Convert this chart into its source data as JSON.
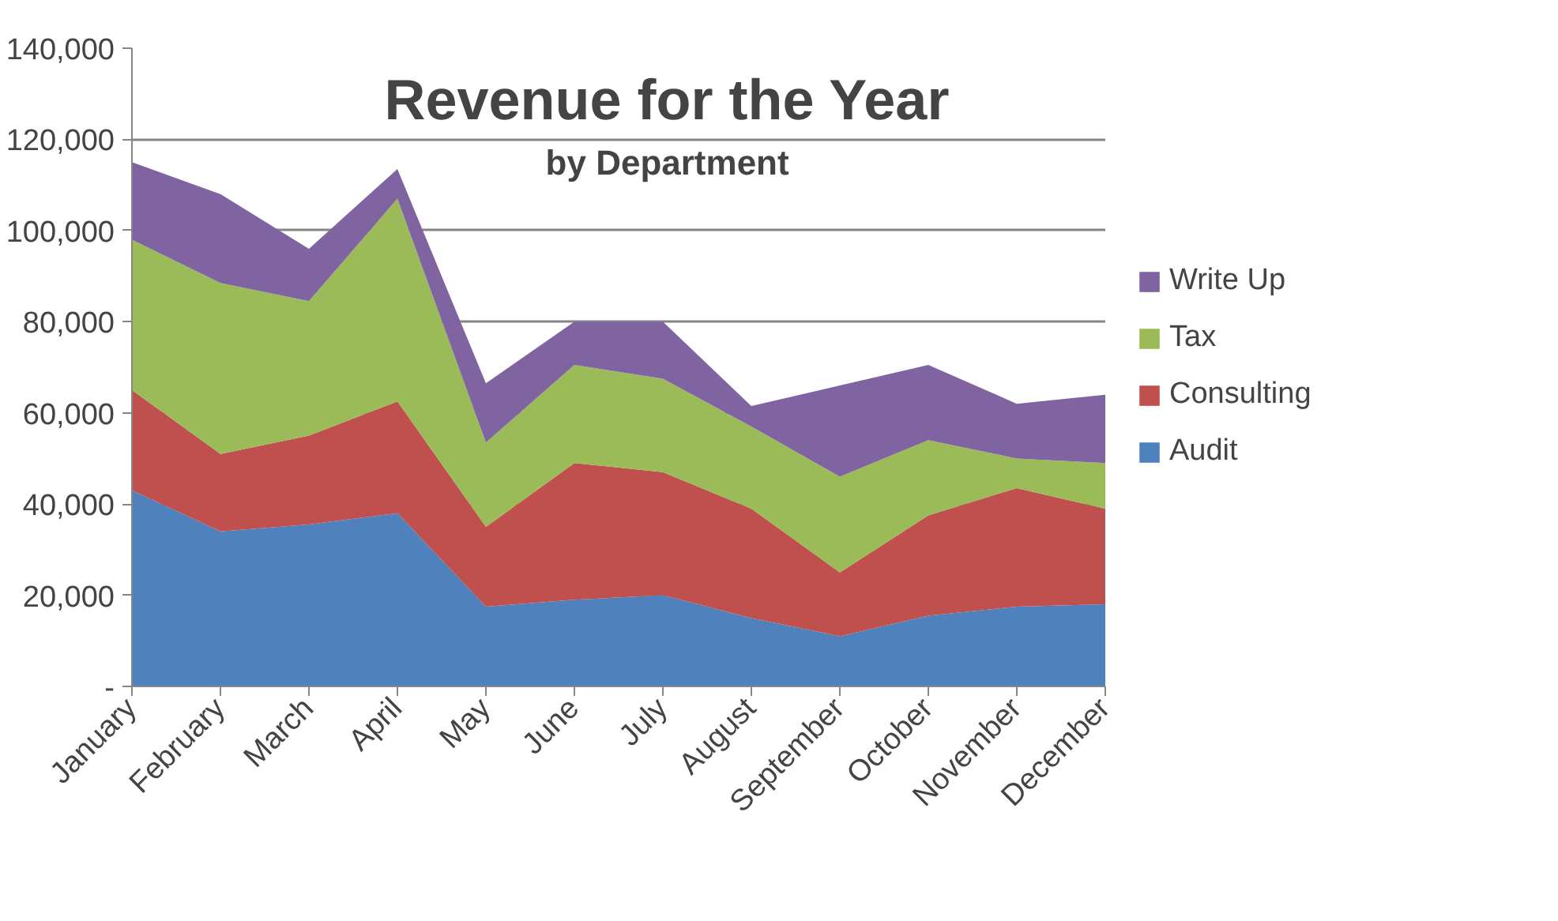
{
  "chart_data": {
    "type": "area",
    "stacked": true,
    "title": "Revenue for the Year",
    "subtitle": "by Department",
    "categories": [
      "January",
      "February",
      "March",
      "April",
      "May",
      "June",
      "July",
      "August",
      "September",
      "October",
      "November",
      "December"
    ],
    "series": [
      {
        "name": "Audit",
        "color": "#4f81bd",
        "values": [
          43000,
          34000,
          35500,
          38000,
          17500,
          19000,
          20000,
          15000,
          11000,
          15500,
          17500,
          18000
        ]
      },
      {
        "name": "Consulting",
        "color": "#c0504d",
        "values": [
          22000,
          17000,
          19500,
          24500,
          17500,
          30000,
          27000,
          24000,
          14000,
          22000,
          26000,
          21000
        ]
      },
      {
        "name": "Tax",
        "color": "#9bbb59",
        "values": [
          33000,
          37500,
          29500,
          44500,
          18500,
          21500,
          20500,
          18000,
          21000,
          16500,
          6500,
          10000
        ]
      },
      {
        "name": "Write Up",
        "color": "#8064a2",
        "values": [
          17000,
          19500,
          11500,
          6500,
          13000,
          9500,
          12500,
          4500,
          20000,
          16500,
          12000,
          15000
        ]
      }
    ],
    "ylim": [
      0,
      140000
    ],
    "yticks": [
      {
        "value": 0,
        "label": "-"
      },
      {
        "value": 20000,
        "label": "20,000"
      },
      {
        "value": 40000,
        "label": "40,000"
      },
      {
        "value": 60000,
        "label": "60,000"
      },
      {
        "value": 80000,
        "label": "80,000"
      },
      {
        "value": 100000,
        "label": "100,000"
      },
      {
        "value": 120000,
        "label": "120,000"
      },
      {
        "value": 140000,
        "label": "140,000"
      }
    ],
    "grid": "y",
    "legend": "right"
  }
}
